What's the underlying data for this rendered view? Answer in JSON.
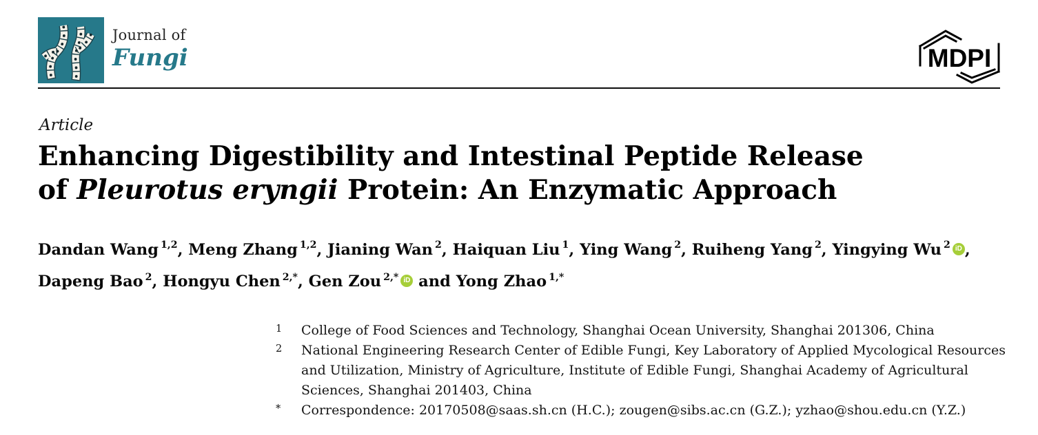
{
  "journal": {
    "header_label_top": "Journal of",
    "header_label_name": "Fungi",
    "publisher_logo_text": "MDPI",
    "brand_teal": "#26798a",
    "orcid_green": "#a6ce39"
  },
  "article": {
    "type_label": "Article",
    "title": {
      "line1": "Enhancing Digestibility and Intestinal Peptide Release",
      "line2_prefix": "of ",
      "line2_italic": "Pleurotus eryngii",
      "line2_suffix": " Protein: An Enzymatic Approach"
    },
    "orcid_icon_label": "iD",
    "authors": [
      {
        "name": "Dandan Wang",
        "sup": "1,2",
        "orcid": false,
        "sep": ", "
      },
      {
        "name": "Meng Zhang",
        "sup": "1,2",
        "orcid": false,
        "sep": ", "
      },
      {
        "name": "Jianing Wan",
        "sup": "2",
        "orcid": false,
        "sep": ", "
      },
      {
        "name": "Haiquan Liu",
        "sup": "1",
        "orcid": false,
        "sep": ", "
      },
      {
        "name": "Ying Wang",
        "sup": "2",
        "orcid": false,
        "sep": ", "
      },
      {
        "name": "Ruiheng Yang",
        "sup": "2",
        "orcid": false,
        "sep": ", "
      },
      {
        "name": "Yingying Wu",
        "sup": "2",
        "orcid": true,
        "sep": ",",
        "break_after": true
      },
      {
        "name": "Dapeng Bao",
        "sup": "2",
        "orcid": false,
        "sep": ", "
      },
      {
        "name": "Hongyu Chen",
        "sup": "2,*",
        "orcid": false,
        "sep": ", "
      },
      {
        "name": "Gen Zou",
        "sup": "2,*",
        "orcid": true,
        "sep": " and "
      },
      {
        "name": "Yong Zhao",
        "sup": "1,*",
        "orcid": false,
        "sep": ""
      }
    ]
  },
  "affiliations": [
    {
      "marker": "1",
      "text": "College of Food Sciences and Technology, Shanghai Ocean University, Shanghai 201306, China"
    },
    {
      "marker": "2",
      "text": "National Engineering Research Center of Edible Fungi, Key Laboratory of Applied Mycological Resources and Utilization, Ministry of Agriculture, Institute of Edible Fungi, Shanghai Academy of Agricultural Sciences, Shanghai 201403, China"
    },
    {
      "marker": "*",
      "text": "Correspondence: 20170508@saas.sh.cn (H.C.); zougen@sibs.ac.cn (G.Z.); yzhao@shou.edu.cn (Y.Z.)"
    }
  ]
}
